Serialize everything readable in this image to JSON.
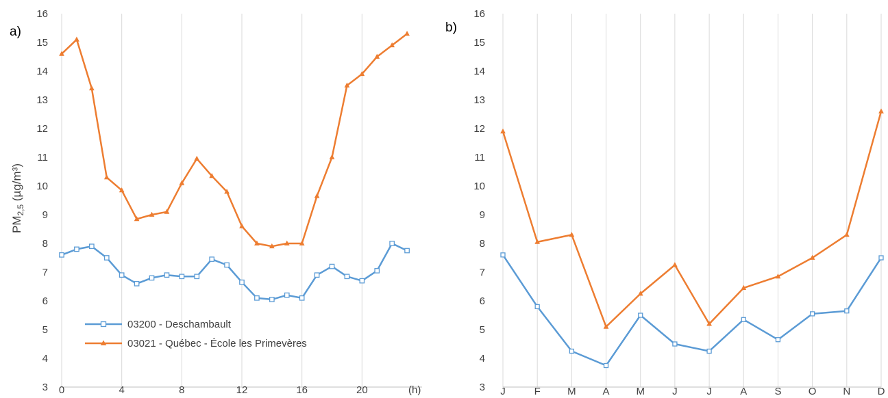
{
  "chart_data": [
    {
      "panel": "a)",
      "type": "line",
      "xlabel": "",
      "x_unit_label": "(h)",
      "ylabel": {
        "prefix": "PM",
        "subscript": "2,5",
        "suffix": " (µg/m³)"
      },
      "x": [
        0,
        1,
        2,
        3,
        4,
        5,
        6,
        7,
        8,
        9,
        10,
        11,
        12,
        13,
        14,
        15,
        16,
        17,
        18,
        19,
        20,
        21,
        22,
        23
      ],
      "x_ticks": [
        0,
        4,
        8,
        12,
        16,
        20
      ],
      "xlim": [
        0,
        24
      ],
      "ylim": [
        3,
        16
      ],
      "y_ticks": [
        3,
        4,
        5,
        6,
        7,
        8,
        9,
        10,
        11,
        12,
        13,
        14,
        15,
        16
      ],
      "grid": "vertical",
      "legend_position": "bottom-left",
      "series": [
        {
          "name": "03200 - Deschambault",
          "color": "#5B9BD5",
          "marker": "square",
          "values": [
            7.6,
            7.8,
            7.9,
            7.5,
            6.9,
            6.6,
            6.8,
            6.9,
            6.85,
            6.85,
            7.45,
            7.25,
            6.65,
            6.1,
            6.05,
            6.2,
            6.1,
            6.9,
            7.2,
            6.85,
            6.7,
            7.05,
            8.0,
            7.75
          ]
        },
        {
          "name": "03021 - Québec - École les Primevères",
          "color": "#ED7D31",
          "marker": "triangle",
          "values": [
            14.6,
            15.1,
            13.4,
            10.3,
            9.85,
            8.85,
            9.0,
            9.1,
            10.1,
            10.95,
            10.35,
            9.8,
            8.6,
            8.0,
            7.9,
            8.0,
            8.0,
            9.65,
            11.0,
            13.5,
            13.9,
            14.5,
            14.9,
            15.3
          ]
        }
      ]
    },
    {
      "panel": "b)",
      "type": "line",
      "xlabel": "",
      "categories": [
        "J",
        "F",
        "M",
        "A",
        "M",
        "J",
        "J",
        "A",
        "S",
        "O",
        "N",
        "D"
      ],
      "ylim": [
        3,
        16
      ],
      "y_ticks": [
        3,
        4,
        5,
        6,
        7,
        8,
        9,
        10,
        11,
        12,
        13,
        14,
        15,
        16
      ],
      "grid": "vertical",
      "series": [
        {
          "name": "03200 - Deschambault",
          "color": "#5B9BD5",
          "values": [
            7.6,
            5.8,
            4.25,
            3.75,
            5.5,
            4.5,
            4.25,
            5.35,
            4.65,
            5.55,
            5.65,
            7.5
          ]
        },
        {
          "name": "03021 - Québec - École les Primevères",
          "color": "#ED7D31",
          "values": [
            11.9,
            8.05,
            8.3,
            5.1,
            6.25,
            7.25,
            5.2,
            6.45,
            6.85,
            7.5,
            8.3,
            12.6
          ]
        }
      ]
    }
  ]
}
